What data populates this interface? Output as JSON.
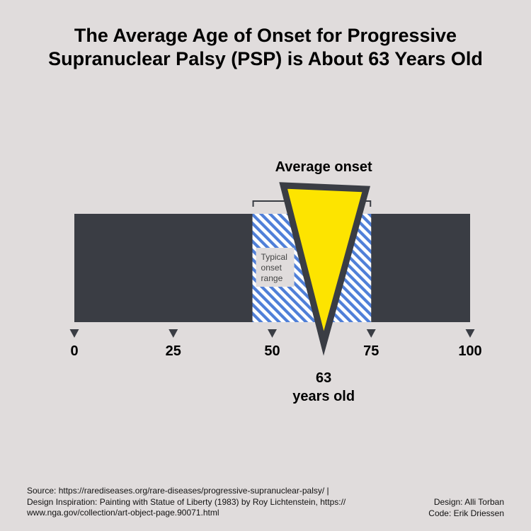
{
  "title_lines": [
    "The Average Age of Onset for Progressive",
    "Supranuclear Palsy (PSP) is About 63 Years Old"
  ],
  "chart_data": {
    "type": "bar",
    "axis_min": 0,
    "axis_max": 100,
    "ticks": [
      0,
      25,
      50,
      75,
      100
    ],
    "typical_range": [
      45,
      75
    ],
    "typical_range_label": [
      "Typical",
      "onset",
      "range"
    ],
    "average_onset": 63,
    "average_label": "Average onset",
    "value_label": "63",
    "value_unit_label": "years old"
  },
  "colors": {
    "background": "#e0dcdc",
    "bar": "#3a3d44",
    "hatch": "#4f7fd8",
    "pointer_fill": "#fde400",
    "pointer_stroke": "#3a3d44"
  },
  "footer": {
    "source_lines": [
      "Source: https://rarediseases.org/rare-diseases/progressive-supranuclear-palsy/ |",
      "Design Inspiration: Painting with Statue of Liberty (1983) by Roy Lichtenstein, https://",
      "www.nga.gov/collection/art-object-page.90071.html"
    ],
    "design_credit": "Design: Alli Torban",
    "code_credit": "Code: Erik Driessen"
  }
}
